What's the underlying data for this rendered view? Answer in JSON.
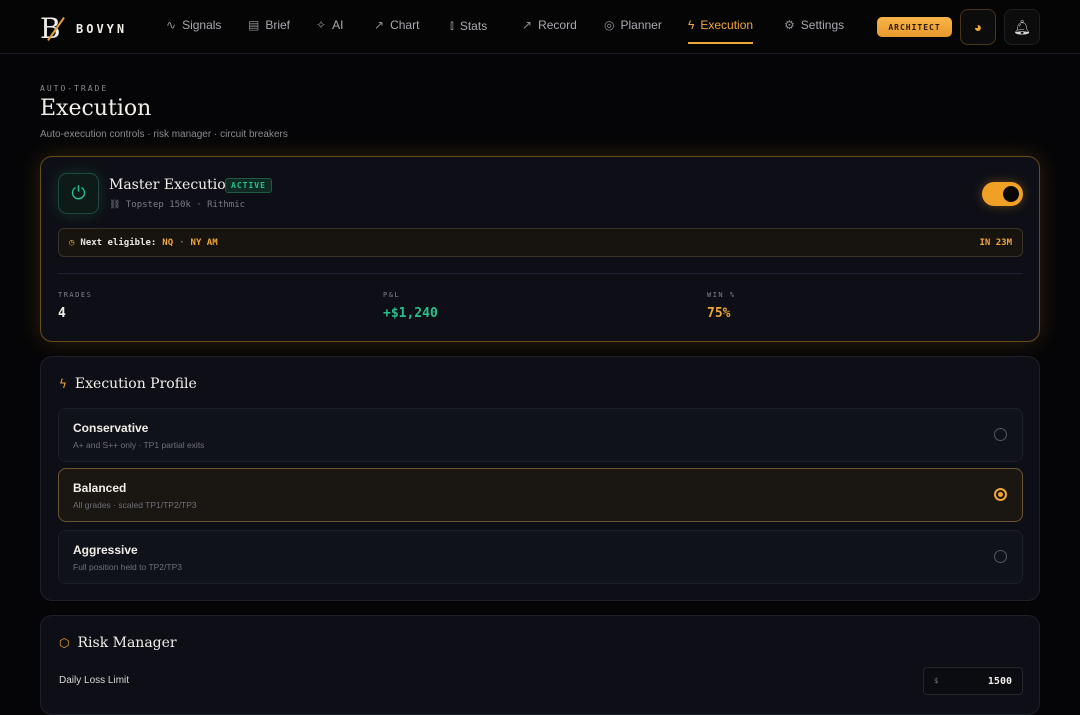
{
  "brand": {
    "name": "BOVYN",
    "logo_letter": "B"
  },
  "nav": {
    "items": [
      {
        "label": "Signals",
        "icon": "pulse-icon"
      },
      {
        "label": "Brief",
        "icon": "newspaper-icon"
      },
      {
        "label": "AI",
        "icon": "sparkles-icon"
      },
      {
        "label": "Chart",
        "icon": "trend-up-icon"
      },
      {
        "label": "Stats",
        "icon": "bar-chart-icon"
      },
      {
        "label": "Record",
        "icon": "trend-up-icon"
      },
      {
        "label": "Planner",
        "icon": "target-icon"
      },
      {
        "label": "Execution",
        "icon": "lightning-icon",
        "active": true
      },
      {
        "label": "Settings",
        "icon": "gear-icon"
      }
    ],
    "badge": "ARCHITECT"
  },
  "header": {
    "kicker": "AUTO-TRADE",
    "title": "Execution",
    "subtitle": "Auto-execution controls · risk manager · circuit breakers"
  },
  "master": {
    "title": "Master Execution",
    "status": "ACTIVE",
    "connection": "Topstep 150k · Rithmic",
    "enabled": true,
    "next_label": "Next eligible:",
    "next_symbol": "NQ",
    "next_sep": "·",
    "next_session": "NY AM",
    "countdown": "IN 23M",
    "stats": [
      {
        "label": "TRADES",
        "value": "4"
      },
      {
        "label": "P&L",
        "value": "+$1,240"
      },
      {
        "label": "WIN %",
        "value": "75%"
      }
    ]
  },
  "profile": {
    "title": "Execution Profile",
    "options": [
      {
        "name": "Conservative",
        "desc": "A+ and S++ only · TP1 partial exits",
        "selected": false
      },
      {
        "name": "Balanced",
        "desc": "All grades · scaled TP1/TP2/TP3",
        "selected": true
      },
      {
        "name": "Aggressive",
        "desc": "Full position held to TP2/TP3",
        "selected": false
      }
    ]
  },
  "risk": {
    "title": "Risk Manager",
    "daily_loss_label": "Daily Loss Limit",
    "currency": "$",
    "daily_loss_value": "1500"
  },
  "colors": {
    "accent": "#f0a637",
    "positive": "#27c08a",
    "background": "#050507",
    "card": "#0e0f16"
  }
}
